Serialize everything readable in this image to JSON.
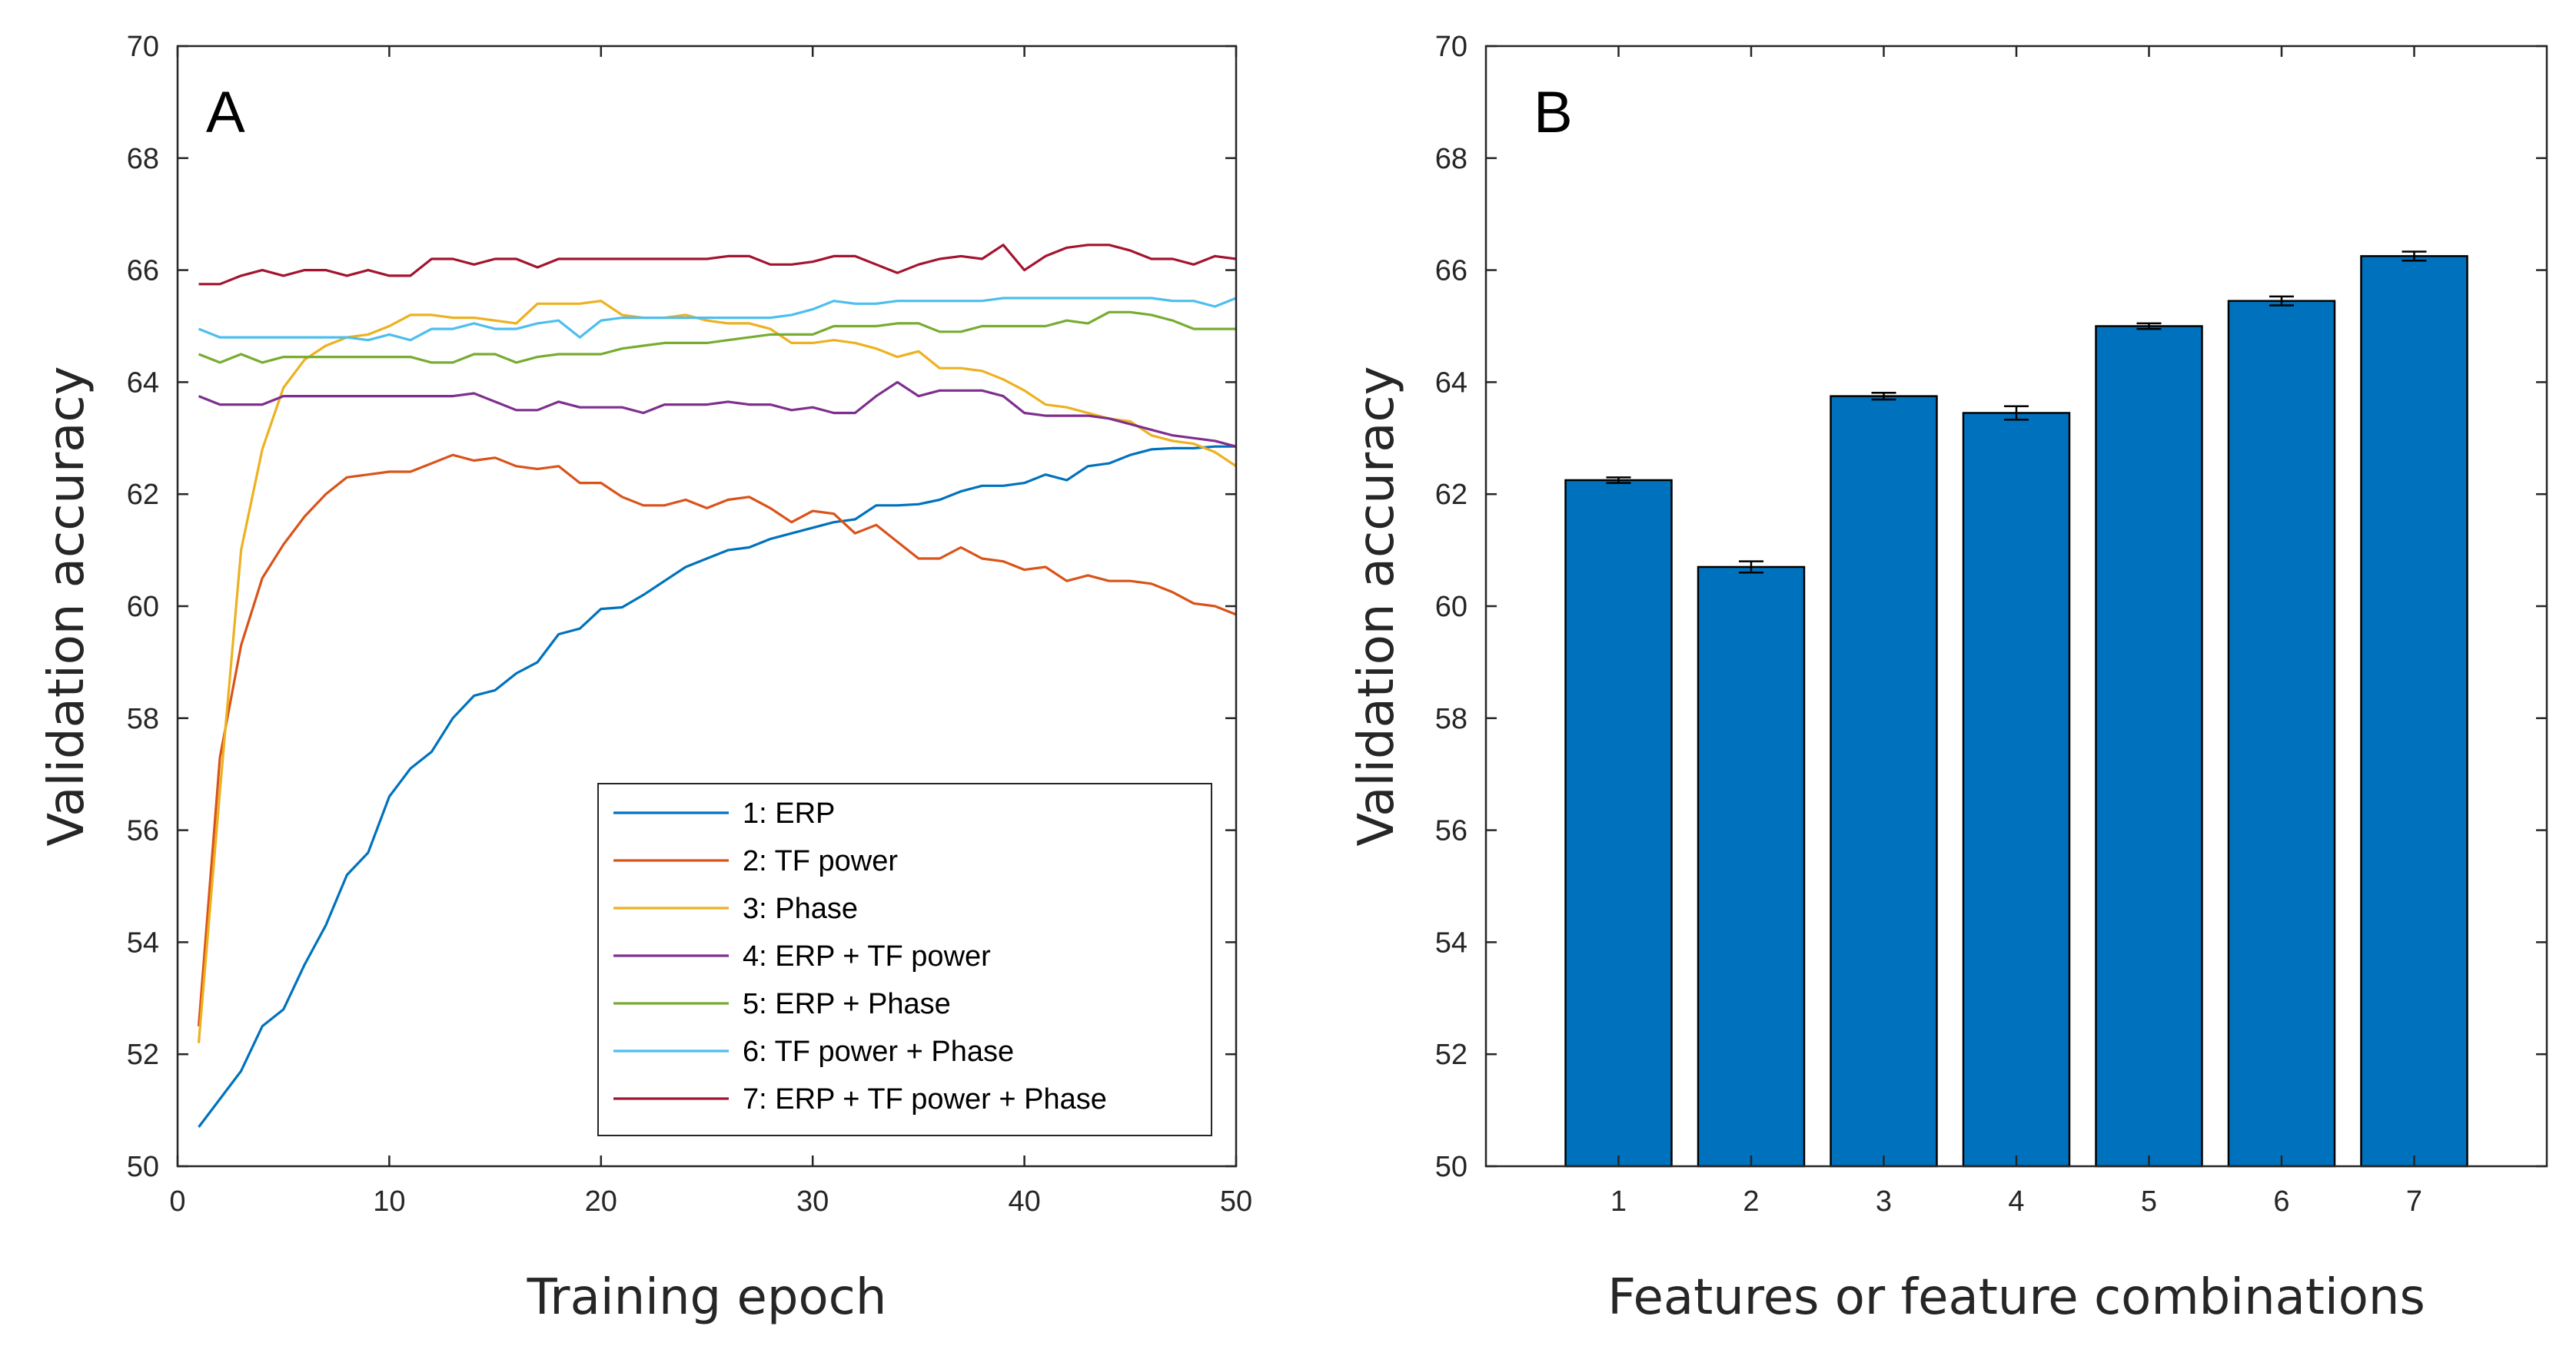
{
  "colors": {
    "background": "#ffffff",
    "axis": "#262626",
    "bar_fill": "#0072bd",
    "bar_edge": "#000000"
  },
  "chart_data": [
    {
      "panel_label": "A",
      "type": "line",
      "xlabel": "Training epoch",
      "ylabel": "Validation accuracy",
      "xlim": [
        0,
        50
      ],
      "ylim": [
        50,
        70
      ],
      "xticks": [
        0,
        10,
        20,
        30,
        40,
        50
      ],
      "yticks": [
        50,
        52,
        54,
        56,
        58,
        60,
        62,
        64,
        66,
        68,
        70
      ],
      "grid": false,
      "legend_position": "bottom-right",
      "x": [
        1,
        2,
        3,
        4,
        5,
        6,
        7,
        8,
        9,
        10,
        11,
        12,
        13,
        14,
        15,
        16,
        17,
        18,
        19,
        20,
        21,
        22,
        23,
        24,
        25,
        26,
        27,
        28,
        29,
        30,
        31,
        32,
        33,
        34,
        35,
        36,
        37,
        38,
        39,
        40,
        41,
        42,
        43,
        44,
        45,
        46,
        47,
        48,
        49,
        50
      ],
      "series": [
        {
          "name": "1: ERP",
          "color": "#0072bd",
          "values": [
            50.7,
            51.2,
            51.7,
            52.5,
            52.8,
            53.6,
            54.3,
            55.2,
            55.6,
            56.6,
            57.1,
            57.4,
            58.0,
            58.4,
            58.5,
            58.8,
            59.0,
            59.5,
            59.6,
            59.95,
            59.98,
            60.2,
            60.45,
            60.7,
            60.85,
            61.0,
            61.05,
            61.2,
            61.3,
            61.4,
            61.5,
            61.55,
            61.8,
            61.8,
            61.82,
            61.9,
            62.05,
            62.15,
            62.15,
            62.2,
            62.35,
            62.25,
            62.5,
            62.55,
            62.7,
            62.8,
            62.82,
            62.82,
            62.85,
            62.85
          ]
        },
        {
          "name": "2: TF power",
          "color": "#d95319",
          "values": [
            52.5,
            57.3,
            59.3,
            60.5,
            61.1,
            61.6,
            62.0,
            62.3,
            62.35,
            62.4,
            62.4,
            62.55,
            62.7,
            62.6,
            62.65,
            62.5,
            62.45,
            62.5,
            62.2,
            62.2,
            61.95,
            61.8,
            61.8,
            61.9,
            61.75,
            61.9,
            61.95,
            61.75,
            61.5,
            61.7,
            61.65,
            61.3,
            61.45,
            61.15,
            60.85,
            60.85,
            61.05,
            60.85,
            60.8,
            60.65,
            60.7,
            60.45,
            60.55,
            60.45,
            60.45,
            60.4,
            60.25,
            60.05,
            60.0,
            59.85
          ]
        },
        {
          "name": "3: Phase",
          "color": "#edb120",
          "values": [
            52.2,
            56.7,
            61.0,
            62.8,
            63.9,
            64.4,
            64.65,
            64.8,
            64.85,
            65.0,
            65.2,
            65.2,
            65.15,
            65.15,
            65.1,
            65.05,
            65.4,
            65.4,
            65.4,
            65.45,
            65.2,
            65.15,
            65.15,
            65.2,
            65.1,
            65.05,
            65.05,
            64.95,
            64.7,
            64.7,
            64.75,
            64.7,
            64.6,
            64.45,
            64.55,
            64.25,
            64.25,
            64.2,
            64.05,
            63.85,
            63.6,
            63.55,
            63.45,
            63.35,
            63.3,
            63.05,
            62.95,
            62.9,
            62.75,
            62.5
          ]
        },
        {
          "name": "4: ERP + TF power",
          "color": "#7e2f8e",
          "values": [
            63.75,
            63.6,
            63.6,
            63.6,
            63.75,
            63.75,
            63.75,
            63.75,
            63.75,
            63.75,
            63.75,
            63.75,
            63.75,
            63.8,
            63.65,
            63.5,
            63.5,
            63.65,
            63.55,
            63.55,
            63.55,
            63.45,
            63.6,
            63.6,
            63.6,
            63.65,
            63.6,
            63.6,
            63.5,
            63.55,
            63.45,
            63.45,
            63.75,
            64.0,
            63.75,
            63.85,
            63.85,
            63.85,
            63.75,
            63.45,
            63.4,
            63.4,
            63.4,
            63.35,
            63.25,
            63.15,
            63.05,
            63.0,
            62.95,
            62.85
          ]
        },
        {
          "name": "5: ERP + Phase",
          "color": "#77ac30",
          "values": [
            64.5,
            64.35,
            64.5,
            64.35,
            64.45,
            64.45,
            64.45,
            64.45,
            64.45,
            64.45,
            64.45,
            64.35,
            64.35,
            64.5,
            64.5,
            64.35,
            64.45,
            64.5,
            64.5,
            64.5,
            64.6,
            64.65,
            64.7,
            64.7,
            64.7,
            64.75,
            64.8,
            64.85,
            64.85,
            64.85,
            65.0,
            65.0,
            65.0,
            65.05,
            65.05,
            64.9,
            64.9,
            65.0,
            65.0,
            65.0,
            65.0,
            65.1,
            65.05,
            65.25,
            65.25,
            65.2,
            65.1,
            64.95,
            64.95,
            64.95
          ]
        },
        {
          "name": "6: TF power + Phase",
          "color": "#4dbeee",
          "values": [
            64.95,
            64.8,
            64.8,
            64.8,
            64.8,
            64.8,
            64.8,
            64.8,
            64.75,
            64.85,
            64.75,
            64.95,
            64.95,
            65.05,
            64.95,
            64.95,
            65.05,
            65.1,
            64.8,
            65.1,
            65.15,
            65.15,
            65.15,
            65.15,
            65.15,
            65.15,
            65.15,
            65.15,
            65.2,
            65.3,
            65.45,
            65.4,
            65.4,
            65.45,
            65.45,
            65.45,
            65.45,
            65.45,
            65.5,
            65.5,
            65.5,
            65.5,
            65.5,
            65.5,
            65.5,
            65.5,
            65.45,
            65.45,
            65.35,
            65.5
          ]
        },
        {
          "name": "7: ERP + TF power + Phase",
          "color": "#a2142f",
          "values": [
            65.75,
            65.75,
            65.9,
            66.0,
            65.9,
            66.0,
            66.0,
            65.9,
            66.0,
            65.9,
            65.9,
            66.2,
            66.2,
            66.1,
            66.2,
            66.2,
            66.05,
            66.2,
            66.2,
            66.2,
            66.2,
            66.2,
            66.2,
            66.2,
            66.2,
            66.25,
            66.25,
            66.1,
            66.1,
            66.15,
            66.25,
            66.25,
            66.1,
            65.95,
            66.1,
            66.2,
            66.25,
            66.2,
            66.45,
            66.0,
            66.25,
            66.4,
            66.45,
            66.45,
            66.35,
            66.2,
            66.2,
            66.1,
            66.25,
            66.2
          ]
        }
      ]
    },
    {
      "panel_label": "B",
      "type": "bar",
      "xlabel": "Features or feature combinations",
      "ylabel": "Validation accuracy",
      "categories": [
        "1",
        "2",
        "3",
        "4",
        "5",
        "6",
        "7"
      ],
      "values": [
        62.25,
        60.7,
        63.75,
        63.45,
        65.0,
        65.45,
        66.25
      ],
      "error": [
        0.05,
        0.1,
        0.06,
        0.12,
        0.05,
        0.08,
        0.08
      ],
      "ylim": [
        50,
        70
      ],
      "yticks": [
        50,
        52,
        54,
        56,
        58,
        60,
        62,
        64,
        66,
        68,
        70
      ],
      "grid": false,
      "bar_color": "#0072bd"
    }
  ]
}
